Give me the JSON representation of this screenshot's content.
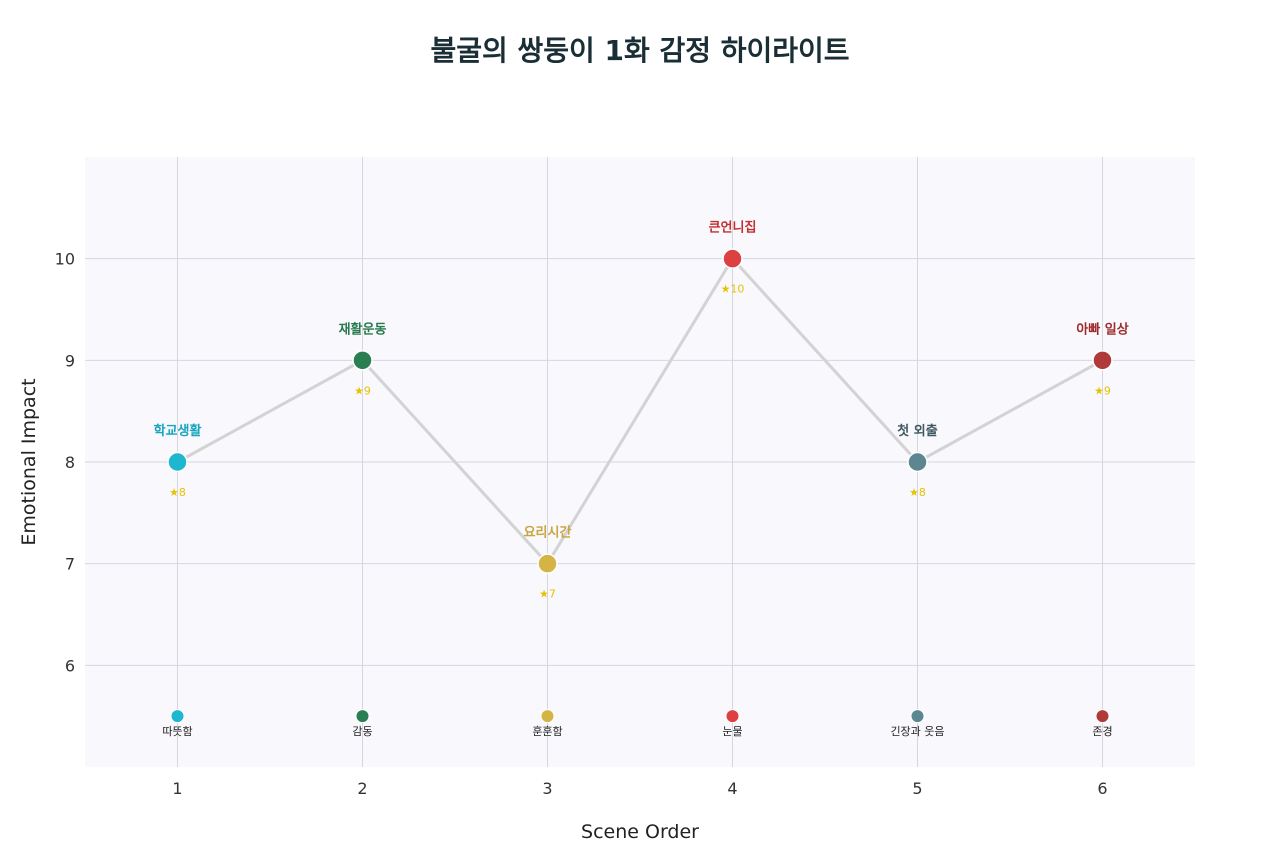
{
  "chart_data": {
    "type": "line",
    "title": "불굴의 쌍둥이 1화 감정 하이라이트",
    "xlabel": "Scene Order",
    "ylabel": "Emotional Impact",
    "x": [
      1,
      2,
      3,
      4,
      5,
      6
    ],
    "xlim": [
      0.5,
      6.5
    ],
    "ylim": [
      5,
      11
    ],
    "yticks": [
      6,
      7,
      8,
      9,
      10
    ],
    "emotion_row_y": 5.5,
    "grid": true,
    "line_color": "#d3d3d3",
    "plot_bg": "#f8f8fd",
    "series": [
      {
        "values": [
          8,
          9,
          7,
          10,
          8,
          9
        ],
        "scenes": [
          "학교생활",
          "재활운동",
          "요리시간",
          "큰언니집",
          "첫 외출",
          "아빠 일상"
        ],
        "stars": [
          "★8",
          "★9",
          "★7",
          "★10",
          "★8",
          "★9"
        ],
        "emotions": [
          "따뜻함",
          "감동",
          "훈훈함",
          "눈물",
          "긴장과 웃음",
          "존경"
        ],
        "colors": [
          "#1fb6d0",
          "#2a7f52",
          "#d4b445",
          "#dd4040",
          "#5c8790",
          "#b03a3a"
        ],
        "label_colors": [
          "#17a4bd",
          "#267a4b",
          "#c9a53b",
          "#c42f2f",
          "#3d5a60",
          "#9e2b2b"
        ]
      }
    ]
  }
}
